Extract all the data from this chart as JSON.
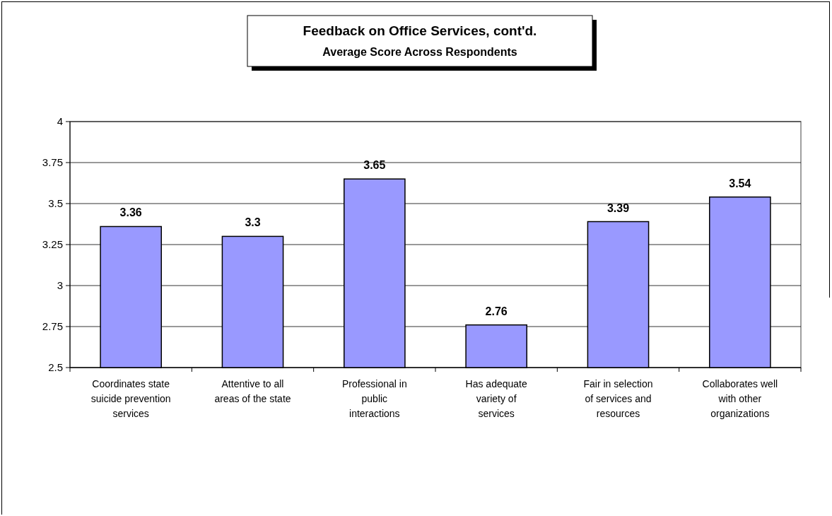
{
  "chart_data": {
    "type": "bar",
    "title": "Feedback on Office Services, cont'd.",
    "subtitle": "Average Score Across Respondents",
    "categories": [
      "Coordinates state suicide prevention services",
      "Attentive to all areas of the state",
      "Professional in public interactions",
      "Has adequate variety of services",
      "Fair in selection of services and resources",
      "Collaborates well with other organizations"
    ],
    "values": [
      3.36,
      3.3,
      3.65,
      2.76,
      3.39,
      3.54
    ],
    "color": "#9999ff",
    "ylim": [
      2.5,
      4
    ],
    "yticks": [
      2.5,
      2.75,
      3,
      3.25,
      3.5,
      3.75,
      4
    ],
    "grid": "y",
    "data_labels": true
  }
}
